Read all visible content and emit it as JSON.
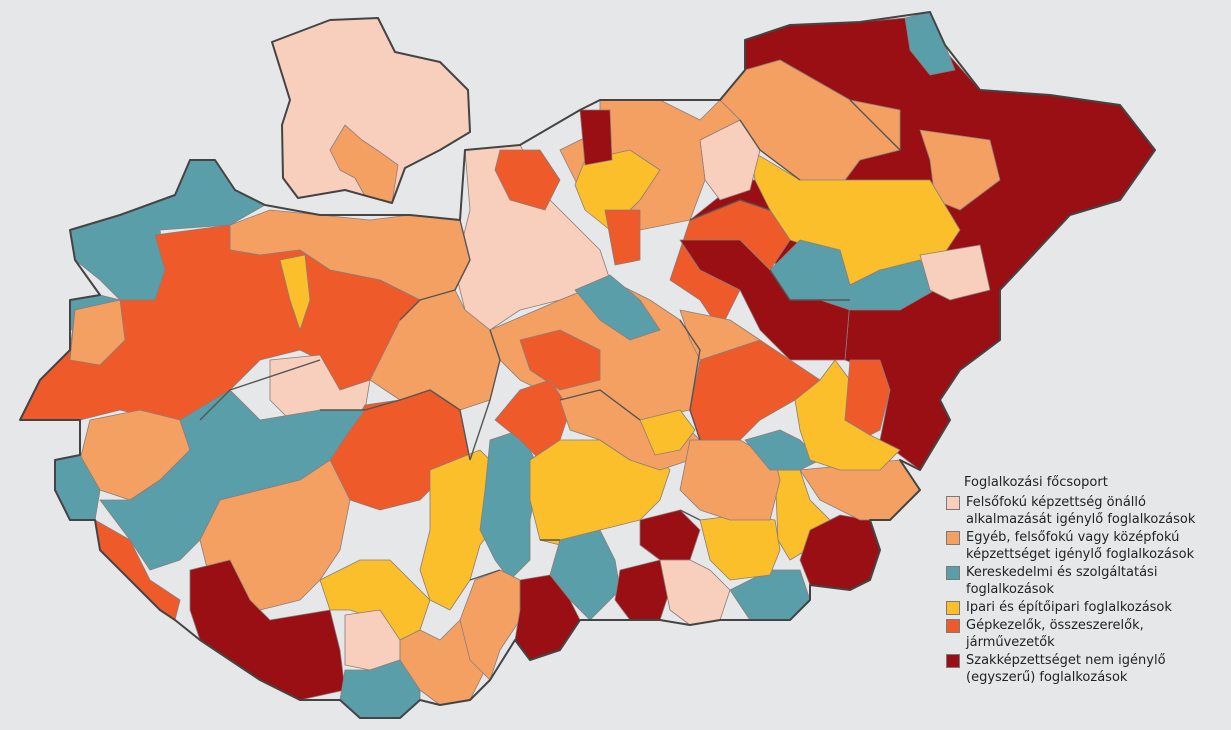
{
  "legend": {
    "title": "Foglalkozási főcsoport",
    "items": [
      {
        "label": "Felsőfokú képzettség önálló alkalmazását igénylő foglalkozások",
        "color": "#f8cfbd"
      },
      {
        "label": "Egyéb, felsőfokú vagy középfokú képzettséget igénylő foglalkozások",
        "color": "#f4a063"
      },
      {
        "label": "Kereskedelmi és szolgáltatási foglalkozások",
        "color": "#5a9eaa"
      },
      {
        "label": "Ipari és építőipari foglalkozások",
        "color": "#fbbf2b"
      },
      {
        "label": "Gépkezelők, összeszerelők, járművezetők",
        "color": "#ef5a2b"
      },
      {
        "label": "Szakképzettséget nem igénylő (egyszerű) foglalkozások",
        "color": "#990f14"
      }
    ]
  }
}
